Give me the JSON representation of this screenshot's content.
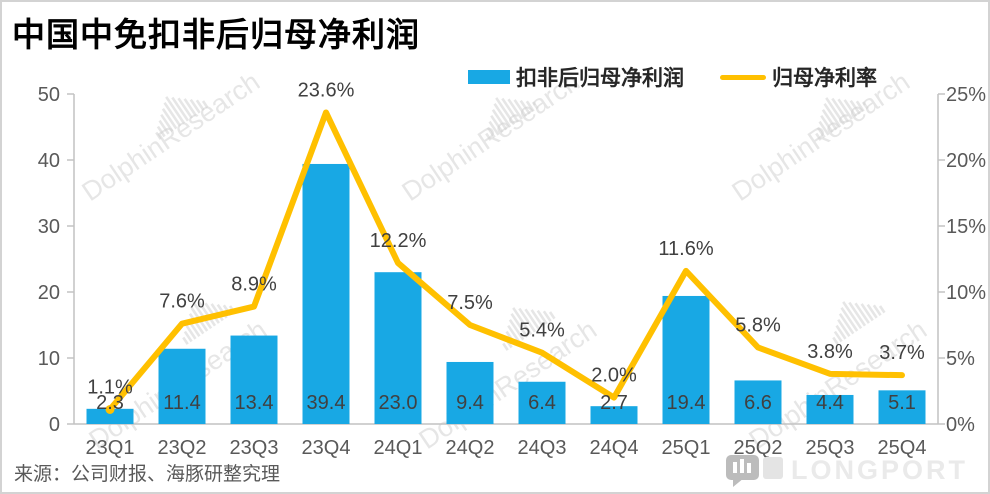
{
  "title": "中国中免扣非后归母净利润",
  "legend": {
    "bar": {
      "label": "扣非后归母净利润",
      "color": "#18A8E4"
    },
    "line": {
      "label": "归母净利率",
      "color": "#FFC000"
    }
  },
  "source_note": "来源：公司财报、海豚研整究理",
  "watermark_text": "DolphinResearch",
  "logo_text": "LONGPORT",
  "colors": {
    "bar": "#18A8E4",
    "line": "#FFC000",
    "data_label": "#404040",
    "axis_label": "#595959",
    "axis_line": "#c2c2c2",
    "watermark": "#d2d2d2"
  },
  "chart_data": {
    "type": "bar+line",
    "categories": [
      "23Q1",
      "23Q2",
      "23Q3",
      "23Q4",
      "24Q1",
      "24Q2",
      "24Q3",
      "24Q4",
      "25Q1",
      "25Q2",
      "25Q3",
      "25Q4"
    ],
    "series": [
      {
        "name": "扣非后归母净利润",
        "type": "bar",
        "axis": "left",
        "values": [
          2.3,
          11.4,
          13.4,
          39.4,
          23.0,
          9.4,
          6.4,
          2.7,
          19.4,
          6.6,
          4.4,
          5.1
        ],
        "labels": [
          "2.3",
          "11.4",
          "13.4",
          "39.4",
          "23.0",
          "9.4",
          "6.4",
          "2.7",
          "19.4",
          "6.6",
          "4.4",
          "5.1"
        ]
      },
      {
        "name": "归母净利率",
        "type": "line",
        "axis": "right",
        "values_percent": [
          1.1,
          7.6,
          8.9,
          23.6,
          12.2,
          7.5,
          5.4,
          2.0,
          11.6,
          5.8,
          3.8,
          3.7
        ],
        "labels": [
          "1.1%",
          "7.6%",
          "8.9%",
          "23.6%",
          "12.2%",
          "7.5%",
          "5.4%",
          "2.0%",
          "11.6%",
          "5.8%",
          "3.8%",
          "3.7%"
        ]
      }
    ],
    "left_axis": {
      "min": 0,
      "max": 50,
      "ticks": [
        "0",
        "10",
        "20",
        "30",
        "40",
        "50"
      ]
    },
    "right_axis": {
      "min": 0,
      "max": 25,
      "ticks": [
        "0%",
        "5%",
        "10%",
        "15%",
        "20%",
        "25%"
      ]
    },
    "grid": false,
    "legend_position": "top"
  }
}
